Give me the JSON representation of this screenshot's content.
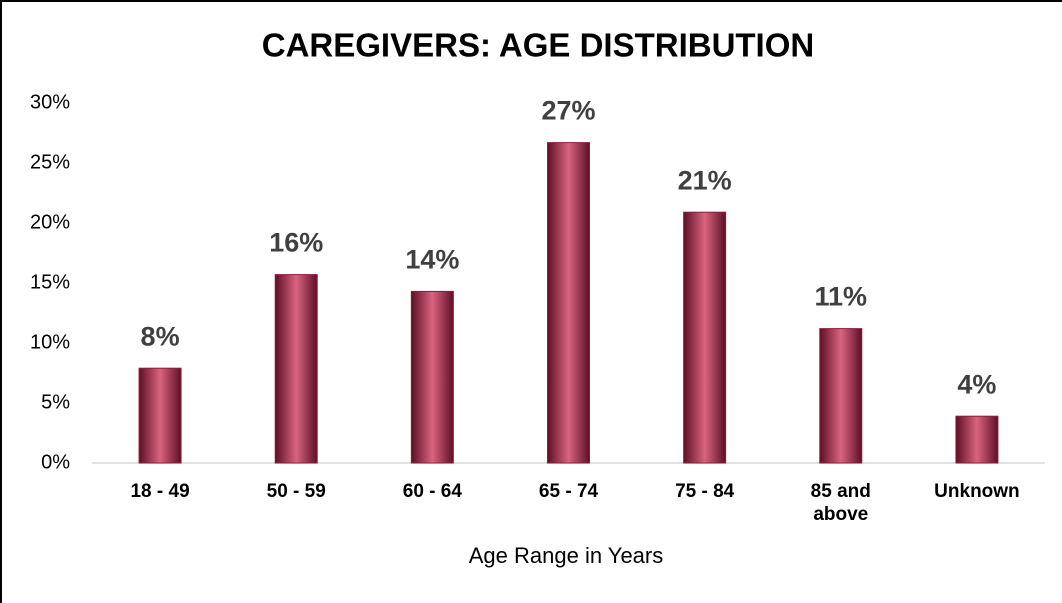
{
  "chart_data": {
    "type": "bar",
    "title": "CAREGIVERS: AGE DISTRIBUTION",
    "x_label": "Age Range in Years",
    "categories": [
      "18 - 49",
      "50 - 59",
      "60 - 64",
      "65 - 74",
      "75 - 84",
      "85 and above",
      "Unknown"
    ],
    "values": [
      7.9,
      15.7,
      14.3,
      26.7,
      20.9,
      11.2,
      3.9
    ],
    "value_labels": [
      "8%",
      "16%",
      "14%",
      "27%",
      "21%",
      "11%",
      "4%"
    ],
    "color": "#8e1c3c",
    "ylim": [
      0,
      30
    ],
    "yticks": [
      {
        "value": 0,
        "label": "0%"
      },
      {
        "value": 5,
        "label": "5%"
      },
      {
        "value": 10,
        "label": "10%"
      },
      {
        "value": 15,
        "label": "15%"
      },
      {
        "value": 20,
        "label": "20%"
      },
      {
        "value": 25,
        "label": "25%"
      },
      {
        "value": 30,
        "label": "30%"
      }
    ],
    "grid": false
  }
}
